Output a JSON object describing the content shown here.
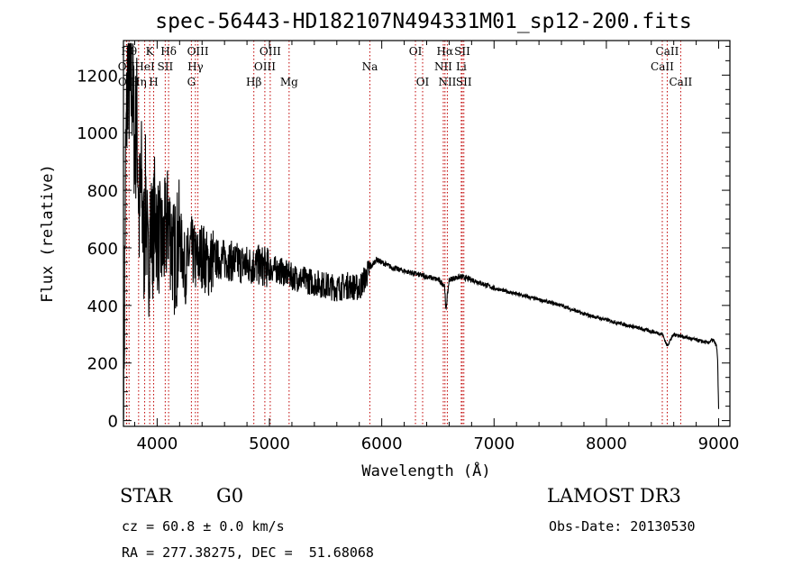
{
  "chart_data": {
    "type": "line",
    "title": "spec-56443-HD182107N494331M01_sp12-200.fits",
    "xlabel": "Wavelength (Å)",
    "ylabel": "Flux (relative)",
    "xlim": [
      3700,
      9100
    ],
    "ylim": [
      -20,
      1320
    ],
    "xticks": [
      4000,
      5000,
      6000,
      7000,
      8000,
      9000
    ],
    "yticks": [
      0,
      200,
      400,
      600,
      800,
      1000,
      1200
    ],
    "series": [
      {
        "name": "flux",
        "x": [
          3700,
          3720,
          3740,
          3760,
          3780,
          3800,
          3820,
          3840,
          3860,
          3880,
          3900,
          3920,
          3940,
          3960,
          3980,
          4000,
          4050,
          4100,
          4150,
          4200,
          4250,
          4300,
          4350,
          4400,
          4450,
          4500,
          4600,
          4700,
          4800,
          4900,
          5000,
          5100,
          5200,
          5300,
          5400,
          5500,
          5600,
          5700,
          5800,
          5900,
          5950,
          6000,
          6100,
          6200,
          6300,
          6400,
          6500,
          6560,
          6570,
          6600,
          6700,
          6800,
          7000,
          7200,
          7400,
          7600,
          7800,
          8000,
          8200,
          8400,
          8500,
          8540,
          8600,
          8700,
          8800,
          8900,
          8950,
          8980,
          8990,
          9000
        ],
        "values": [
          0,
          900,
          1250,
          1100,
          1180,
          950,
          1050,
          700,
          820,
          600,
          780,
          500,
          700,
          620,
          740,
          650,
          600,
          700,
          560,
          640,
          520,
          600,
          550,
          580,
          540,
          560,
          560,
          550,
          540,
          540,
          530,
          520,
          500,
          490,
          480,
          470,
          460,
          470,
          460,
          530,
          560,
          550,
          530,
          520,
          510,
          500,
          490,
          470,
          380,
          490,
          500,
          490,
          460,
          440,
          420,
          400,
          370,
          350,
          330,
          310,
          300,
          260,
          300,
          290,
          280,
          270,
          280,
          260,
          220,
          40
        ]
      }
    ],
    "spectral_lines": [
      {
        "label": "OII",
        "x": 3727,
        "row": 2
      },
      {
        "label": "Hθ",
        "x": 3750,
        "row": 1
      },
      {
        "label": "OII",
        "x": 3729,
        "row": 3
      },
      {
        "label": "Hη",
        "x": 3835,
        "row": 3
      },
      {
        "label": "HeI",
        "x": 3889,
        "row": 2
      },
      {
        "label": "K",
        "x": 3934,
        "row": 1
      },
      {
        "label": "H",
        "x": 3969,
        "row": 3
      },
      {
        "label": "SII",
        "x": 4072,
        "row": 2
      },
      {
        "label": "Hδ",
        "x": 4102,
        "row": 1
      },
      {
        "label": "OIII",
        "x": 4363,
        "row": 1
      },
      {
        "label": "Hγ",
        "x": 4341,
        "row": 2
      },
      {
        "label": "G",
        "x": 4305,
        "row": 3
      },
      {
        "label": "Hβ",
        "x": 4861,
        "row": 3
      },
      {
        "label": "OIII",
        "x": 4959,
        "row": 2
      },
      {
        "label": "OIII",
        "x": 5007,
        "row": 1
      },
      {
        "label": "Mg",
        "x": 5175,
        "row": 3
      },
      {
        "label": "Na",
        "x": 5894,
        "row": 2
      },
      {
        "label": "OI",
        "x": 6300,
        "row": 1
      },
      {
        "label": "OI",
        "x": 6364,
        "row": 3
      },
      {
        "label": "NII",
        "x": 6548,
        "row": 2
      },
      {
        "label": "Hα",
        "x": 6563,
        "row": 1
      },
      {
        "label": "NII",
        "x": 6584,
        "row": 3
      },
      {
        "label": "Li",
        "x": 6708,
        "row": 2
      },
      {
        "label": "SII",
        "x": 6717,
        "row": 1
      },
      {
        "label": "SII",
        "x": 6731,
        "row": 3
      },
      {
        "label": "CaII",
        "x": 8498,
        "row": 2
      },
      {
        "label": "CaII",
        "x": 8542,
        "row": 1
      },
      {
        "label": "CaII",
        "x": 8662,
        "row": 3
      }
    ]
  },
  "info": {
    "object_class": "STAR",
    "subclass": "G0",
    "survey": "LAMOST DR3",
    "redshift": "cz = 60.8 ± 0.0 km/s",
    "obs_date": "Obs-Date: 20130530",
    "coords": "RA = 277.38275, DEC =  51.68068"
  }
}
